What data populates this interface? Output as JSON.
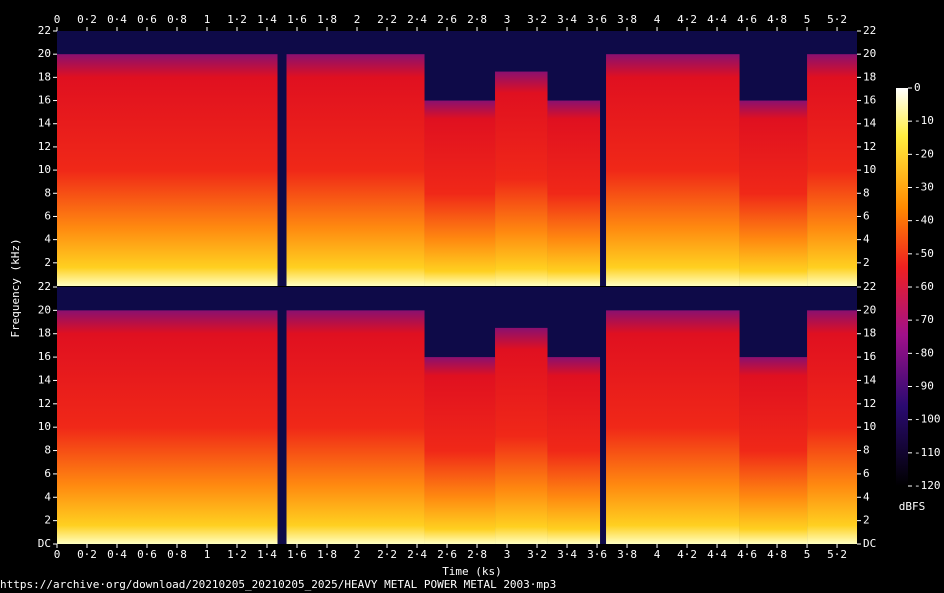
{
  "chart_data": {
    "type": "spectrogram",
    "xlabel": "Time (ks)",
    "ylabel": "Frequency (kHz)",
    "xlim": [
      0,
      5.333
    ],
    "xticks": [
      0,
      {
        "value": 0.2,
        "label": "0·2"
      },
      {
        "value": 0.4,
        "label": "0·4"
      },
      {
        "value": 0.6,
        "label": "0·6"
      },
      {
        "value": 0.8,
        "label": "0·8"
      },
      1,
      {
        "value": 1.2,
        "label": "1·2"
      },
      {
        "value": 1.4,
        "label": "1·4"
      },
      {
        "value": 1.6,
        "label": "1·6"
      },
      {
        "value": 1.8,
        "label": "1·8"
      },
      2,
      {
        "value": 2.2,
        "label": "2·2"
      },
      {
        "value": 2.4,
        "label": "2·4"
      },
      {
        "value": 2.6,
        "label": "2·6"
      },
      {
        "value": 2.8,
        "label": "2·8"
      },
      3,
      {
        "value": 3.2,
        "label": "3·2"
      },
      {
        "value": 3.4,
        "label": "3·4"
      },
      {
        "value": 3.6,
        "label": "3·6"
      },
      {
        "value": 3.8,
        "label": "3·8"
      },
      4,
      {
        "value": 4.2,
        "label": "4·2"
      },
      {
        "value": 4.4,
        "label": "4·4"
      },
      {
        "value": 4.6,
        "label": "4·6"
      },
      {
        "value": 4.8,
        "label": "4·8"
      },
      5,
      {
        "value": 5.2,
        "label": "5·2"
      }
    ],
    "panels": [
      {
        "ylim": [
          0,
          22
        ],
        "yticks": [
          2,
          4,
          6,
          8,
          10,
          12,
          14,
          16,
          18,
          20,
          22
        ]
      },
      {
        "ylim": [
          0,
          22
        ],
        "yticks": [
          {
            "value": 0,
            "label": "DC"
          },
          2,
          4,
          6,
          8,
          10,
          12,
          14,
          16,
          18,
          20,
          22
        ]
      }
    ],
    "segments": [
      {
        "start": 0,
        "end": 1.47,
        "cutoff": 20
      },
      {
        "start": 1.53,
        "end": 2.45,
        "cutoff": 20
      },
      {
        "start": 2.45,
        "end": 2.92,
        "cutoff": 16
      },
      {
        "start": 2.92,
        "end": 3.27,
        "cutoff": 18.5
      },
      {
        "start": 3.27,
        "end": 3.62,
        "cutoff": 16
      },
      {
        "start": 3.66,
        "end": 4.55,
        "cutoff": 20
      },
      {
        "start": 4.55,
        "end": 5.0,
        "cutoff": 16
      },
      {
        "start": 5.0,
        "end": 5.333,
        "cutoff": 20
      }
    ],
    "colorbar": {
      "label": "dBFS",
      "lim": [
        -120,
        0
      ],
      "ticks": [
        0,
        -10,
        -20,
        -30,
        -40,
        -50,
        -60,
        -70,
        -80,
        -90,
        -100,
        -110,
        -120
      ]
    },
    "source": "https://archive·org/download/20210205_20210205_2025/HEAVY METAL POWER METAL 2003·mp3"
  }
}
